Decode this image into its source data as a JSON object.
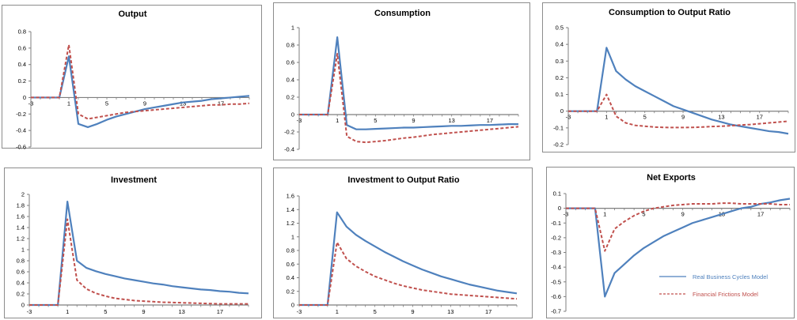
{
  "colors": {
    "rbc": "#4f81bd",
    "ff": "#c0504d",
    "zero_axis": "#7f7f7f",
    "left_axis": "#7f7f7f"
  },
  "legend": {
    "position": "bottom-right",
    "items": [
      {
        "name": "Real Business Cycles Model",
        "style": "solid"
      },
      {
        "name": "Financial Frictions Model",
        "style": "dashed"
      }
    ]
  },
  "chart_data": [
    {
      "type": "line",
      "title": "Output",
      "x": [
        -3,
        -2,
        -1,
        0,
        1,
        2,
        3,
        4,
        5,
        6,
        7,
        8,
        9,
        10,
        11,
        12,
        13,
        14,
        15,
        16,
        17,
        18,
        19,
        20
      ],
      "xticks": [
        -3,
        1,
        5,
        9,
        13,
        17
      ],
      "xtick_labels": [
        "-3",
        "1",
        "5",
        "9",
        "13",
        "17"
      ],
      "ylim": [
        -0.6,
        0.8
      ],
      "yticks": [
        -0.6,
        -0.4,
        -0.2,
        0,
        0.2,
        0.4,
        0.6,
        0.8
      ],
      "ytick_labels": [
        "-0.6",
        "-0.4",
        "-0.2",
        "0",
        "0.2",
        "0.4",
        "0.6",
        "0.8"
      ],
      "series": [
        {
          "name": "Real Business Cycles Model",
          "values": [
            0,
            0,
            0,
            0,
            0.5,
            -0.32,
            -0.36,
            -0.32,
            -0.27,
            -0.23,
            -0.2,
            -0.17,
            -0.14,
            -0.12,
            -0.1,
            -0.08,
            -0.06,
            -0.05,
            -0.04,
            -0.02,
            -0.01,
            0,
            0.01,
            0.02
          ]
        },
        {
          "name": "Financial Frictions Model",
          "values": [
            0,
            0,
            0,
            0,
            0.64,
            -0.2,
            -0.26,
            -0.24,
            -0.22,
            -0.2,
            -0.18,
            -0.17,
            -0.16,
            -0.15,
            -0.14,
            -0.13,
            -0.12,
            -0.11,
            -0.1,
            -0.09,
            -0.09,
            -0.08,
            -0.08,
            -0.07
          ]
        }
      ]
    },
    {
      "type": "line",
      "title": "Consumption",
      "x": [
        -3,
        -2,
        -1,
        0,
        1,
        2,
        3,
        4,
        5,
        6,
        7,
        8,
        9,
        10,
        11,
        12,
        13,
        14,
        15,
        16,
        17,
        18,
        19,
        20
      ],
      "xticks": [
        -3,
        1,
        5,
        9,
        13,
        17
      ],
      "xtick_labels": [
        "-3",
        "1",
        "5",
        "9",
        "13",
        "17"
      ],
      "ylim": [
        -0.4,
        1
      ],
      "yticks": [
        -0.4,
        -0.2,
        0,
        0.2,
        0.4,
        0.6,
        0.8,
        1
      ],
      "ytick_labels": [
        "-0.4",
        "-0.2",
        "0",
        "0.2",
        "0.4",
        "0.6",
        "0.8",
        "1"
      ],
      "series": [
        {
          "name": "Real Business Cycles Model",
          "values": [
            0,
            0,
            0,
            0,
            0.89,
            -0.12,
            -0.17,
            -0.17,
            -0.165,
            -0.16,
            -0.155,
            -0.15,
            -0.15,
            -0.145,
            -0.14,
            -0.135,
            -0.13,
            -0.13,
            -0.125,
            -0.12,
            -0.12,
            -0.115,
            -0.11,
            -0.11
          ]
        },
        {
          "name": "Financial Frictions Model",
          "values": [
            0,
            0,
            0,
            0,
            0.7,
            -0.25,
            -0.31,
            -0.32,
            -0.31,
            -0.3,
            -0.285,
            -0.27,
            -0.26,
            -0.245,
            -0.23,
            -0.22,
            -0.21,
            -0.2,
            -0.19,
            -0.18,
            -0.17,
            -0.16,
            -0.15,
            -0.14
          ]
        }
      ]
    },
    {
      "type": "line",
      "title": "Consumption to Output Ratio",
      "x": [
        -3,
        -2,
        -1,
        0,
        1,
        2,
        3,
        4,
        5,
        6,
        7,
        8,
        9,
        10,
        11,
        12,
        13,
        14,
        15,
        16,
        17,
        18,
        19,
        20
      ],
      "xticks": [
        -3,
        1,
        5,
        9,
        13,
        17
      ],
      "xtick_labels": [
        "-3",
        "1",
        "5",
        "9",
        "13",
        "17"
      ],
      "ylim": [
        -0.2,
        0.5
      ],
      "yticks": [
        -0.2,
        -0.1,
        0,
        0.1,
        0.2,
        0.3,
        0.4,
        0.5
      ],
      "ytick_labels": [
        "-0.2",
        "-0.1",
        "0",
        "0.1",
        "0.2",
        "0.3",
        "0.4",
        "0.5"
      ],
      "series": [
        {
          "name": "Real Business Cycles Model",
          "values": [
            0,
            0,
            0,
            0,
            0.38,
            0.24,
            0.19,
            0.15,
            0.12,
            0.09,
            0.06,
            0.03,
            0.01,
            -0.01,
            -0.03,
            -0.05,
            -0.065,
            -0.08,
            -0.09,
            -0.1,
            -0.11,
            -0.12,
            -0.125,
            -0.135
          ]
        },
        {
          "name": "Financial Frictions Model",
          "values": [
            0,
            0,
            0,
            0,
            0.1,
            -0.03,
            -0.07,
            -0.085,
            -0.09,
            -0.095,
            -0.097,
            -0.098,
            -0.098,
            -0.097,
            -0.095,
            -0.092,
            -0.09,
            -0.087,
            -0.083,
            -0.08,
            -0.075,
            -0.07,
            -0.065,
            -0.06
          ]
        }
      ]
    },
    {
      "type": "line",
      "title": "Investment",
      "x": [
        -3,
        -2,
        -1,
        0,
        1,
        2,
        3,
        4,
        5,
        6,
        7,
        8,
        9,
        10,
        11,
        12,
        13,
        14,
        15,
        16,
        17,
        18,
        19,
        20
      ],
      "xticks": [
        -3,
        1,
        5,
        9,
        13,
        17
      ],
      "xtick_labels": [
        "-3",
        "1",
        "5",
        "9",
        "13",
        "17"
      ],
      "ylim": [
        0,
        2
      ],
      "yticks": [
        0,
        0.2,
        0.4,
        0.6,
        0.8,
        1,
        1.2,
        1.4,
        1.6,
        1.8,
        2
      ],
      "ytick_labels": [
        "0",
        "0.2",
        "0.4",
        "0.6",
        "0.8",
        "1",
        "1.2",
        "1.4",
        "1.6",
        "1.8",
        "2"
      ],
      "series": [
        {
          "name": "Real Business Cycles Model",
          "values": [
            0,
            0,
            0,
            0,
            1.87,
            0.8,
            0.67,
            0.61,
            0.56,
            0.52,
            0.48,
            0.45,
            0.42,
            0.39,
            0.37,
            0.34,
            0.32,
            0.3,
            0.28,
            0.27,
            0.25,
            0.24,
            0.22,
            0.21
          ]
        },
        {
          "name": "Financial Frictions Model",
          "values": [
            0,
            0,
            0,
            0,
            1.55,
            0.45,
            0.29,
            0.21,
            0.16,
            0.12,
            0.1,
            0.08,
            0.07,
            0.06,
            0.05,
            0.045,
            0.04,
            0.035,
            0.03,
            0.025,
            0.02,
            0.02,
            0.02,
            0.02
          ]
        }
      ]
    },
    {
      "type": "line",
      "title": "Investment to Output Ratio",
      "x": [
        -3,
        -2,
        -1,
        0,
        1,
        2,
        3,
        4,
        5,
        6,
        7,
        8,
        9,
        10,
        11,
        12,
        13,
        14,
        15,
        16,
        17,
        18,
        19,
        20
      ],
      "xticks": [
        -3,
        1,
        5,
        9,
        13,
        17
      ],
      "xtick_labels": [
        "-3",
        "1",
        "5",
        "9",
        "13",
        "17"
      ],
      "ylim": [
        0,
        1.6
      ],
      "yticks": [
        0,
        0.2,
        0.4,
        0.6,
        0.8,
        1,
        1.2,
        1.4,
        1.6
      ],
      "ytick_labels": [
        "0",
        "0.2",
        "0.4",
        "0.6",
        "0.8",
        "1",
        "1.2",
        "1.4",
        "1.6"
      ],
      "series": [
        {
          "name": "Real Business Cycles Model",
          "values": [
            0,
            0,
            0,
            0,
            1.36,
            1.15,
            1.03,
            0.94,
            0.86,
            0.78,
            0.71,
            0.64,
            0.58,
            0.52,
            0.47,
            0.42,
            0.38,
            0.34,
            0.3,
            0.27,
            0.24,
            0.21,
            0.19,
            0.17
          ]
        },
        {
          "name": "Financial Frictions Model",
          "values": [
            0,
            0,
            0,
            0,
            0.92,
            0.68,
            0.57,
            0.49,
            0.42,
            0.37,
            0.32,
            0.28,
            0.25,
            0.22,
            0.2,
            0.18,
            0.16,
            0.15,
            0.14,
            0.13,
            0.12,
            0.11,
            0.1,
            0.09
          ]
        }
      ]
    },
    {
      "type": "line",
      "title": "Net Exports",
      "x": [
        -3,
        -2,
        -1,
        0,
        1,
        2,
        3,
        4,
        5,
        6,
        7,
        8,
        9,
        10,
        11,
        12,
        13,
        14,
        15,
        16,
        17,
        18,
        19,
        20
      ],
      "xticks": [
        -3,
        1,
        5,
        9,
        13,
        17
      ],
      "xtick_labels": [
        "-3",
        "1",
        "5",
        "9",
        "13",
        "17"
      ],
      "ylim": [
        -0.7,
        0.1
      ],
      "yticks": [
        -0.7,
        -0.6,
        -0.5,
        -0.4,
        -0.3,
        -0.2,
        -0.1,
        0,
        0.1
      ],
      "ytick_labels": [
        "-0.7",
        "-0.6",
        "-0.5",
        "-0.4",
        "-0.3",
        "-0.2",
        "-0.1",
        "0",
        "0.1"
      ],
      "series": [
        {
          "name": "Real Business Cycles Model",
          "values": [
            0,
            0,
            0,
            0,
            -0.6,
            -0.44,
            -0.38,
            -0.32,
            -0.27,
            -0.23,
            -0.19,
            -0.16,
            -0.13,
            -0.1,
            -0.08,
            -0.06,
            -0.04,
            -0.02,
            0,
            0.01,
            0.03,
            0.04,
            0.055,
            0.065
          ]
        },
        {
          "name": "Financial Frictions Model",
          "values": [
            0,
            0,
            0,
            0,
            -0.29,
            -0.14,
            -0.09,
            -0.05,
            -0.02,
            0,
            0.01,
            0.02,
            0.025,
            0.03,
            0.03,
            0.03,
            0.035,
            0.035,
            0.03,
            0.03,
            0.03,
            0.03,
            0.025,
            0.025
          ]
        }
      ]
    }
  ]
}
